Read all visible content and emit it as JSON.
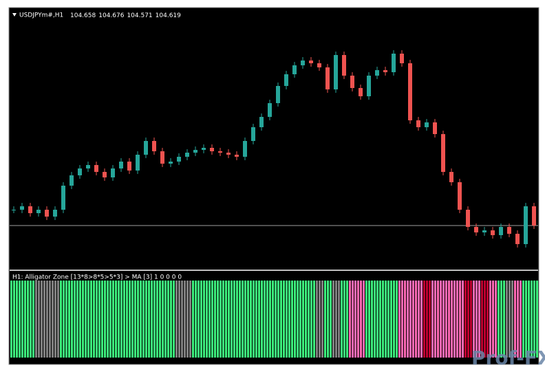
{
  "chart_data": {
    "type": "candlestick",
    "symbol": "USDJPYm#,H1",
    "quote": [
      104.658,
      104.676,
      104.571,
      104.619
    ],
    "closes": [
      104.711,
      104.731,
      104.691,
      104.711,
      104.671,
      104.711,
      104.851,
      104.911,
      104.951,
      104.971,
      104.931,
      104.899,
      104.951,
      104.991,
      104.939,
      105.031,
      105.111,
      105.051,
      104.979,
      104.991,
      105.019,
      105.043,
      105.059,
      105.071,
      105.051,
      105.043,
      105.031,
      105.019,
      105.111,
      105.191,
      105.251,
      105.331,
      105.431,
      105.499,
      105.551,
      105.579,
      105.563,
      105.539,
      105.411,
      105.611,
      105.491,
      105.419,
      105.371,
      105.491,
      105.523,
      105.511,
      105.619,
      105.563,
      105.231,
      105.191,
      105.219,
      105.151,
      104.931,
      104.871,
      104.711,
      104.611,
      104.579,
      104.591,
      104.563,
      104.611,
      104.571,
      104.511,
      104.731,
      104.619
    ],
    "ylim": [
      104.363,
      105.883
    ],
    "up_color": "#26a69a",
    "down_color": "#ef5350",
    "indicator": {
      "title": "H1: Alligator Zone [13*8>8*5>5*3] > MA [3]  1 0 0 0 0",
      "colors": [
        "#3cf07c",
        "#3cf07c",
        "#3cf07c",
        "#808080",
        "#808080",
        "#808080",
        "#3cf07c",
        "#3cf07c",
        "#3cf07c",
        "#3cf07c",
        "#3cf07c",
        "#3cf07c",
        "#3cf07c",
        "#3cf07c",
        "#3cf07c",
        "#3cf07c",
        "#3cf07c",
        "#3cf07c",
        "#3cf07c",
        "#3cf07c",
        "#808080",
        "#808080",
        "#3cf07c",
        "#3cf07c",
        "#3cf07c",
        "#3cf07c",
        "#3cf07c",
        "#3cf07c",
        "#3cf07c",
        "#3cf07c",
        "#3cf07c",
        "#3cf07c",
        "#3cf07c",
        "#3cf07c",
        "#3cf07c",
        "#3cf07c",
        "#3cf07c",
        "#808080",
        "#3cf07c",
        "#808080",
        "#3cf07c",
        "#ff69b4",
        "#ff69b4",
        "#3cf07c",
        "#3cf07c",
        "#3cf07c",
        "#3cf07c",
        "#ff69b4",
        "#ff69b4",
        "#ff69b4",
        "#c00030",
        "#ff69b4",
        "#ff69b4",
        "#ff69b4",
        "#ff69b4",
        "#c00030",
        "#ff69b4",
        "#c00030",
        "#ff69b4",
        "#3cf07c",
        "#808080",
        "#ff69b4",
        "#3cf07c",
        "#3cf07c"
      ]
    },
    "watermark": "Prof-FX"
  }
}
